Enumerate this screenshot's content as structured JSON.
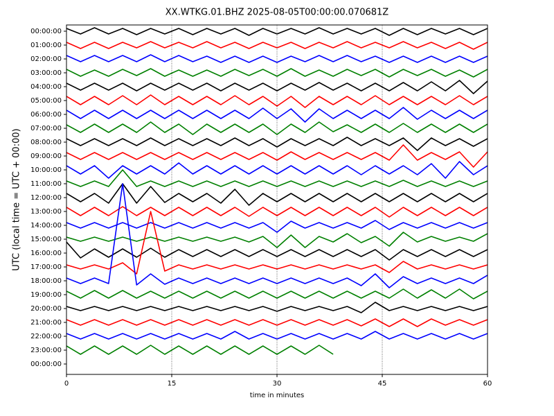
{
  "chart_data": {
    "type": "helicorder",
    "title": "XX.WTKG.01.BHZ 2025-08-05T00:00:00.070681Z",
    "xlabel": "time in minutes",
    "ylabel": "UTC (local time = UTC + 00:00)",
    "xlim": [
      0,
      60
    ],
    "xticks": [
      0,
      15,
      30,
      45,
      60
    ],
    "ylim": [
      24.75,
      -0.45
    ],
    "yticks": [
      {
        "value": 0,
        "label": "00:00:00"
      },
      {
        "value": 1,
        "label": "01:00:00"
      },
      {
        "value": 2,
        "label": "02:00:00"
      },
      {
        "value": 3,
        "label": "03:00:00"
      },
      {
        "value": 4,
        "label": "04:00:00"
      },
      {
        "value": 5,
        "label": "05:00:00"
      },
      {
        "value": 6,
        "label": "06:00:00"
      },
      {
        "value": 7,
        "label": "07:00:00"
      },
      {
        "value": 8,
        "label": "08:00:00"
      },
      {
        "value": 9,
        "label": "09:00:00"
      },
      {
        "value": 10,
        "label": "10:00:00"
      },
      {
        "value": 11,
        "label": "11:00:00"
      },
      {
        "value": 12,
        "label": "12:00:00"
      },
      {
        "value": 13,
        "label": "13:00:00"
      },
      {
        "value": 14,
        "label": "14:00:00"
      },
      {
        "value": 15,
        "label": "15:00:00"
      },
      {
        "value": 16,
        "label": "16:00:00"
      },
      {
        "value": 17,
        "label": "17:00:00"
      },
      {
        "value": 18,
        "label": "18:00:00"
      },
      {
        "value": 19,
        "label": "19:00:00"
      },
      {
        "value": 20,
        "label": "20:00:00"
      },
      {
        "value": 21,
        "label": "21:00:00"
      },
      {
        "value": 22,
        "label": "22:00:00"
      },
      {
        "value": 23,
        "label": "23:00:00"
      },
      {
        "value": 24,
        "label": "00:00:00"
      }
    ],
    "xgrid": true,
    "x": [
      0,
      2,
      4,
      6,
      8,
      10,
      12,
      14,
      16,
      18,
      20,
      22,
      24,
      26,
      28,
      30,
      32,
      34,
      36,
      38,
      40,
      42,
      44,
      46,
      48,
      50,
      52,
      54,
      56,
      58,
      60
    ],
    "series": [
      {
        "color": "#000000",
        "values": [
          0.2,
          0.2,
          0.25,
          0.2,
          0.2,
          0.25,
          0.2,
          0.2,
          0.2,
          0.25,
          0.2,
          0.2,
          0.2,
          0.3,
          0.2,
          0.2,
          0.2,
          0.2,
          0.25,
          0.2,
          0.2,
          0.2,
          0.2,
          0.3,
          0.2,
          0.25,
          0.2,
          0.2,
          0.2,
          0.25,
          0.2
        ]
      },
      {
        "color": "#ff0000",
        "values": [
          0.2,
          0.25,
          0.2,
          0.25,
          0.2,
          0.2,
          0.25,
          0.2,
          0.2,
          0.2,
          0.25,
          0.2,
          0.2,
          0.25,
          0.2,
          0.2,
          0.2,
          0.25,
          0.2,
          0.2,
          0.25,
          0.2,
          0.2,
          0.2,
          0.25,
          0.2,
          0.2,
          0.25,
          0.2,
          0.3,
          0.2
        ]
      },
      {
        "color": "#0000ff",
        "values": [
          0.25,
          0.2,
          0.25,
          0.2,
          0.25,
          0.2,
          0.3,
          0.2,
          0.25,
          0.2,
          0.2,
          0.25,
          0.2,
          0.25,
          0.2,
          0.25,
          0.2,
          0.2,
          0.25,
          0.2,
          0.25,
          0.2,
          0.2,
          0.25,
          0.2,
          0.25,
          0.2,
          0.25,
          0.2,
          0.25,
          0.2
        ]
      },
      {
        "color": "#008000",
        "values": [
          0.25,
          0.25,
          0.2,
          0.25,
          0.25,
          0.2,
          0.3,
          0.25,
          0.2,
          0.25,
          0.2,
          0.25,
          0.25,
          0.2,
          0.25,
          0.25,
          0.3,
          0.25,
          0.2,
          0.25,
          0.25,
          0.2,
          0.25,
          0.3,
          0.25,
          0.2,
          0.25,
          0.25,
          0.2,
          0.3,
          0.25
        ]
      },
      {
        "color": "#000000",
        "values": [
          0.25,
          0.25,
          0.25,
          0.25,
          0.25,
          0.3,
          0.25,
          0.25,
          0.25,
          0.25,
          0.25,
          0.3,
          0.25,
          0.25,
          0.25,
          0.3,
          0.25,
          0.25,
          0.3,
          0.25,
          0.25,
          0.3,
          0.25,
          0.3,
          0.3,
          0.3,
          0.35,
          0.3,
          0.45,
          0.5,
          0.4
        ]
      },
      {
        "color": "#ff0000",
        "values": [
          0.3,
          0.3,
          0.3,
          0.3,
          0.35,
          0.3,
          0.4,
          0.3,
          0.3,
          0.3,
          0.3,
          0.3,
          0.35,
          0.3,
          0.3,
          0.4,
          0.3,
          0.5,
          0.3,
          0.3,
          0.3,
          0.3,
          0.35,
          0.3,
          0.3,
          0.3,
          0.3,
          0.3,
          0.35,
          0.3,
          0.3
        ]
      },
      {
        "color": "#0000ff",
        "values": [
          0.3,
          0.3,
          0.3,
          0.3,
          0.3,
          0.3,
          0.3,
          0.3,
          0.3,
          0.3,
          0.3,
          0.3,
          0.3,
          0.3,
          0.45,
          0.3,
          0.4,
          0.55,
          0.4,
          0.3,
          0.3,
          0.3,
          0.3,
          0.3,
          0.5,
          0.35,
          0.3,
          0.3,
          0.3,
          0.3,
          0.3
        ]
      },
      {
        "color": "#008000",
        "values": [
          0.25,
          0.3,
          0.3,
          0.3,
          0.3,
          0.3,
          0.45,
          0.3,
          0.3,
          0.45,
          0.3,
          0.3,
          0.3,
          0.3,
          0.3,
          0.45,
          0.3,
          0.3,
          0.45,
          0.25,
          0.25,
          0.3,
          0.3,
          0.3,
          0.35,
          0.3,
          0.3,
          0.3,
          0.3,
          0.3,
          0.3
        ]
      },
      {
        "color": "#000000",
        "values": [
          0.25,
          0.25,
          0.25,
          0.25,
          0.25,
          0.25,
          0.3,
          0.25,
          0.25,
          0.25,
          0.25,
          0.25,
          0.3,
          0.25,
          0.25,
          0.35,
          0.25,
          0.25,
          0.25,
          0.25,
          0.35,
          0.25,
          0.25,
          0.25,
          0.3,
          0.6,
          0.3,
          0.25,
          0.25,
          0.3,
          0.25
        ]
      },
      {
        "color": "#ff0000",
        "values": [
          0.25,
          0.25,
          0.25,
          0.25,
          0.25,
          0.25,
          0.25,
          0.25,
          0.25,
          0.25,
          0.25,
          0.25,
          0.25,
          0.25,
          0.25,
          0.3,
          0.3,
          0.25,
          0.25,
          0.25,
          0.25,
          0.25,
          0.25,
          0.3,
          0.8,
          0.3,
          0.25,
          0.25,
          0.3,
          0.8,
          0.3
        ]
      },
      {
        "color": "#0000ff",
        "values": [
          0.3,
          0.3,
          0.3,
          0.6,
          0.3,
          0.3,
          0.3,
          0.3,
          0.5,
          0.3,
          0.3,
          0.3,
          0.3,
          0.3,
          0.3,
          0.3,
          0.3,
          0.3,
          0.3,
          0.3,
          0.3,
          0.35,
          0.3,
          0.3,
          0.3,
          0.35,
          0.45,
          0.6,
          0.6,
          0.35,
          0.3
        ]
      },
      {
        "color": "#008000",
        "values": [
          0.2,
          0.2,
          0.2,
          0.2,
          1.0,
          0.2,
          0.2,
          0.2,
          0.2,
          0.2,
          0.2,
          0.2,
          0.2,
          0.2,
          0.2,
          0.2,
          0.2,
          0.2,
          0.2,
          0.2,
          0.2,
          0.2,
          0.2,
          0.2,
          0.25,
          0.2,
          0.2,
          0.2,
          0.2,
          0.2,
          0.2
        ]
      },
      {
        "color": "#000000",
        "values": [
          0.3,
          0.3,
          0.3,
          0.4,
          1.0,
          0.4,
          0.8,
          0.35,
          0.3,
          0.3,
          0.3,
          0.4,
          0.6,
          0.55,
          0.3,
          0.3,
          0.3,
          0.3,
          0.3,
          0.3,
          0.3,
          0.3,
          0.3,
          0.3,
          0.3,
          0.3,
          0.3,
          0.3,
          0.3,
          0.3,
          0.3
        ]
      },
      {
        "color": "#ff0000",
        "values": [
          0.3,
          0.3,
          0.3,
          0.3,
          0.35,
          0.3,
          0.3,
          0.3,
          0.3,
          0.3,
          0.3,
          0.3,
          0.3,
          0.35,
          0.3,
          0.3,
          0.3,
          0.3,
          0.3,
          0.3,
          0.3,
          0.3,
          0.3,
          0.4,
          0.3,
          0.3,
          0.3,
          0.3,
          0.3,
          0.3,
          0.3
        ]
      },
      {
        "color": "#0000ff",
        "values": [
          0.2,
          0.2,
          0.2,
          0.2,
          0.2,
          0.2,
          0.2,
          0.2,
          0.2,
          0.2,
          0.2,
          0.2,
          0.2,
          0.2,
          0.2,
          0.5,
          0.3,
          0.2,
          0.2,
          0.2,
          0.2,
          0.2,
          0.35,
          0.3,
          0.2,
          0.2,
          0.2,
          0.2,
          0.2,
          0.2,
          0.2
        ]
      },
      {
        "color": "#008000",
        "values": [
          0.15,
          0.15,
          0.15,
          0.15,
          0.15,
          0.15,
          0.15,
          0.15,
          0.15,
          0.15,
          0.15,
          0.15,
          0.15,
          0.2,
          0.2,
          0.6,
          0.3,
          0.6,
          0.2,
          0.2,
          0.4,
          0.25,
          0.2,
          0.5,
          0.5,
          0.2,
          0.2,
          0.15,
          0.15,
          0.15,
          0.4
        ]
      },
      {
        "color": "#000000",
        "values": [
          0.8,
          0.35,
          0.3,
          0.3,
          0.3,
          0.3,
          0.35,
          0.3,
          0.25,
          0.25,
          0.25,
          0.25,
          0.25,
          0.25,
          0.25,
          0.25,
          0.25,
          0.25,
          0.25,
          0.25,
          0.25,
          0.25,
          0.25,
          0.5,
          0.25,
          0.25,
          0.25,
          0.25,
          0.25,
          0.25,
          0.25
        ]
      },
      {
        "color": "#ff0000",
        "values": [
          0.15,
          0.15,
          0.15,
          0.15,
          0.3,
          0.5,
          4.0,
          0.3,
          0.15,
          0.15,
          0.15,
          0.15,
          0.15,
          0.15,
          0.15,
          0.15,
          0.15,
          0.15,
          0.15,
          0.15,
          0.15,
          0.15,
          0.15,
          0.4,
          0.4,
          0.15,
          0.15,
          0.15,
          0.15,
          0.15,
          0.15
        ]
      },
      {
        "color": "#0000ff",
        "values": [
          0.2,
          0.2,
          0.2,
          0.2,
          7.0,
          0.3,
          0.5,
          0.25,
          0.2,
          0.2,
          0.2,
          0.2,
          0.2,
          0.2,
          0.2,
          0.2,
          0.2,
          0.2,
          0.2,
          0.2,
          0.2,
          0.35,
          0.5,
          0.5,
          0.3,
          0.2,
          0.2,
          0.2,
          0.2,
          0.2,
          0.4
        ]
      },
      {
        "color": "#008000",
        "values": [
          0.25,
          0.25,
          0.3,
          0.25,
          0.3,
          0.25,
          0.25,
          0.25,
          0.25,
          0.25,
          0.25,
          0.25,
          0.25,
          0.25,
          0.25,
          0.25,
          0.25,
          0.25,
          0.25,
          0.25,
          0.25,
          0.25,
          0.25,
          0.25,
          0.4,
          0.25,
          0.35,
          0.25,
          0.4,
          0.3,
          0.25
        ]
      },
      {
        "color": "#000000",
        "values": [
          0.15,
          0.15,
          0.15,
          0.15,
          0.15,
          0.15,
          0.15,
          0.15,
          0.15,
          0.15,
          0.15,
          0.15,
          0.15,
          0.15,
          0.15,
          0.2,
          0.15,
          0.15,
          0.15,
          0.15,
          0.15,
          0.3,
          0.45,
          0.15,
          0.15,
          0.15,
          0.15,
          0.15,
          0.15,
          0.15,
          0.15
        ]
      },
      {
        "color": "#ff0000",
        "values": [
          0.2,
          0.2,
          0.2,
          0.2,
          0.2,
          0.2,
          0.2,
          0.2,
          0.2,
          0.2,
          0.2,
          0.2,
          0.2,
          0.2,
          0.2,
          0.2,
          0.2,
          0.2,
          0.2,
          0.2,
          0.2,
          0.25,
          0.25,
          0.3,
          0.25,
          0.3,
          0.25,
          0.2,
          0.2,
          0.2,
          0.2
        ]
      },
      {
        "color": "#0000ff",
        "values": [
          0.2,
          0.2,
          0.2,
          0.2,
          0.2,
          0.2,
          0.2,
          0.2,
          0.2,
          0.2,
          0.2,
          0.2,
          0.35,
          0.2,
          0.2,
          0.2,
          0.2,
          0.2,
          0.2,
          0.2,
          0.2,
          0.2,
          0.35,
          0.2,
          0.2,
          0.2,
          0.2,
          0.2,
          0.2,
          0.2,
          0.2
        ]
      },
      {
        "color": "#008000",
        "values": [
          0.3,
          0.3,
          0.3,
          0.3,
          0.3,
          0.3,
          0.35,
          0.3,
          0.3,
          0.3,
          0.3,
          0.3,
          0.3,
          0.3,
          0.3,
          0.3,
          0.3,
          0.3,
          0.35,
          0.3,
          null,
          null,
          null,
          null,
          null,
          null,
          null,
          null,
          null,
          null,
          null
        ]
      }
    ]
  }
}
